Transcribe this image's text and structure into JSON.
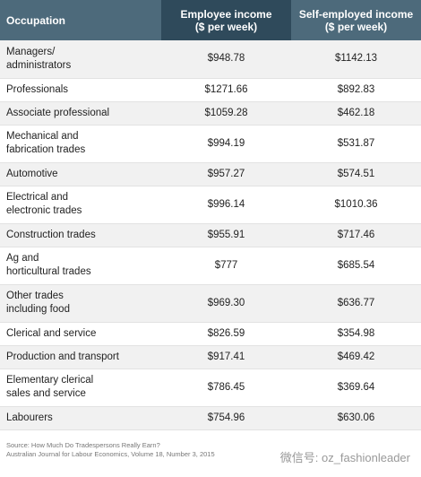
{
  "table": {
    "header": [
      "Occupation",
      "Employee income\n($ per week)",
      "Self-employed income\n($ per week)"
    ],
    "rows": [
      [
        "Managers/\nadministrators",
        "$948.78",
        "$1142.13"
      ],
      [
        "Professionals",
        "$1271.66",
        "$892.83"
      ],
      [
        "Associate professional",
        "$1059.28",
        "$462.18"
      ],
      [
        "Mechanical and\nfabrication trades",
        "$994.19",
        "$531.87"
      ],
      [
        "Automotive",
        "$957.27",
        "$574.51"
      ],
      [
        "Electrical and\nelectronic trades",
        "$996.14",
        "$1010.36"
      ],
      [
        "Construction trades",
        "$955.91",
        "$717.46"
      ],
      [
        "Ag and\nhorticultural trades",
        "$777",
        "$685.54"
      ],
      [
        "Other trades\nincluding food",
        "$969.30",
        "$636.77"
      ],
      [
        "Clerical and service",
        "$826.59",
        "$354.98"
      ],
      [
        "Production and transport",
        "$917.41",
        "$469.42"
      ],
      [
        "Elementary clerical\nsales and service",
        "$786.45",
        "$369.64"
      ],
      [
        "Labourers",
        "$754.96",
        "$630.06"
      ]
    ]
  },
  "source": [
    "Source: How Much Do Tradespersons Really Earn?",
    "Australian Journal for Labour Economics, Volume 18, Number 3, 2015"
  ],
  "watermark": "微信号: oz_fashionleader"
}
